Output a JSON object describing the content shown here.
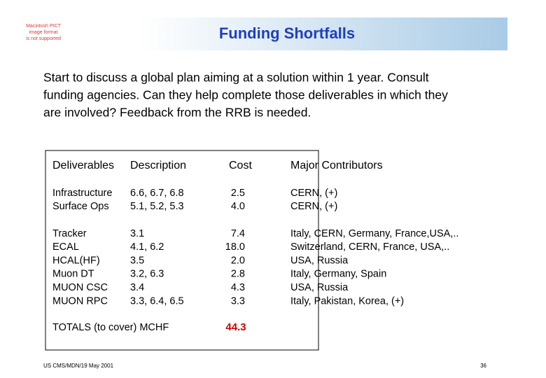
{
  "header": {
    "placeholder": [
      "Macintosh PICT",
      "image format",
      "is not supported"
    ],
    "title": "Funding Shortfalls"
  },
  "body": {
    "lines": [
      "Start to discuss a global plan aiming at a solution within 1 year. Consult",
      "funding agencies. Can they help complete those deliverables in which they",
      "are involved? Feedback from the RRB is needed."
    ]
  },
  "table": {
    "columns": [
      "Deliverables",
      "Description",
      "Cost",
      "Major Contributors"
    ],
    "groups": [
      [
        [
          "Infrastructure",
          "6.6, 6.7, 6.8",
          "2.5",
          "CERN, (+)"
        ],
        [
          "Surface Ops",
          "5.1, 5.2, 5.3",
          "4.0",
          "CERN, (+)"
        ]
      ],
      [
        [
          "Tracker",
          "3.1",
          "7.4",
          "Italy, CERN, Germany, France,USA,.."
        ],
        [
          "ECAL",
          "4.1, 6.2",
          "18.0",
          "Switzerland, CERN, France, USA,.."
        ],
        [
          "HCAL(HF)",
          "3.5",
          "2.0",
          "USA, Russia"
        ],
        [
          "Muon DT",
          "3.2, 6.3",
          "2.8",
          "Italy, Germany, Spain"
        ],
        [
          "MUON CSC",
          "3.4",
          "4.3",
          "USA, Russia"
        ],
        [
          "MUON RPC",
          "3.3, 6.4, 6.5",
          "3.3",
          "Italy, Pakistan, Korea, (+)"
        ]
      ]
    ],
    "totals": {
      "label": "TOTALS (to cover) MCHF",
      "value": "44.3"
    }
  },
  "footer": {
    "source": "US CMS/MDN/19 May 2001",
    "page": "36"
  }
}
